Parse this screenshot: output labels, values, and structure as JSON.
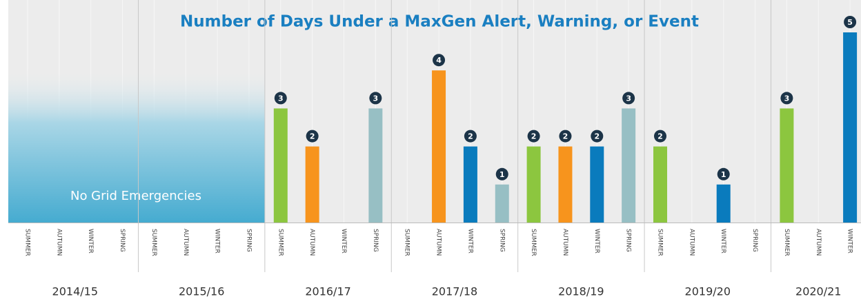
{
  "chart_data": {
    "type": "bar",
    "title": "Number of Days Under a MaxGen Alert, Warning, or Event",
    "annotation": "No Grid Emergencies",
    "ylim": [
      0,
      5
    ],
    "groups": [
      {
        "label": "2014/15",
        "categories": [
          "SUMMER",
          "AUTUMN",
          "WINTER",
          "SPRING"
        ],
        "values": [
          0,
          0,
          0,
          0
        ],
        "colors": [
          "#8cc63f",
          "#f7941d",
          "#0a7bbd",
          "#97bfc4"
        ]
      },
      {
        "label": "2015/16",
        "categories": [
          "SUMMER",
          "AUTUMN",
          "WINTER",
          "SPRING"
        ],
        "values": [
          0,
          0,
          0,
          0
        ],
        "colors": [
          "#8cc63f",
          "#f7941d",
          "#0a7bbd",
          "#97bfc4"
        ]
      },
      {
        "label": "2016/17",
        "categories": [
          "SUMMER",
          "AUTUMN",
          "WINTER",
          "SPRING"
        ],
        "values": [
          3,
          2,
          0,
          3
        ],
        "colors": [
          "#8cc63f",
          "#f7941d",
          "#0a7bbd",
          "#97bfc4"
        ]
      },
      {
        "label": "2017/18",
        "categories": [
          "SUMMER",
          "AUTUMN",
          "WINTER",
          "SPRING"
        ],
        "values": [
          0,
          4,
          2,
          1
        ],
        "colors": [
          "#8cc63f",
          "#f7941d",
          "#0a7bbd",
          "#97bfc4"
        ]
      },
      {
        "label": "2018/19",
        "categories": [
          "SUMMER",
          "AUTUMN",
          "WINTER",
          "SPRING"
        ],
        "values": [
          2,
          2,
          2,
          3
        ],
        "colors": [
          "#8cc63f",
          "#f7941d",
          "#0a7bbd",
          "#97bfc4"
        ]
      },
      {
        "label": "2019/20",
        "categories": [
          "SUMMER",
          "AUTUMN",
          "WINTER",
          "SPRING"
        ],
        "values": [
          2,
          0,
          1,
          0
        ],
        "colors": [
          "#8cc63f",
          "#f7941d",
          "#0a7bbd",
          "#97bfc4"
        ]
      },
      {
        "label": "2020/21",
        "categories": [
          "SUMMER",
          "AUTUMN",
          "WINTER"
        ],
        "values": [
          3,
          0,
          5
        ],
        "colors": [
          "#8cc63f",
          "#f7941d",
          "#0a7bbd"
        ]
      }
    ]
  }
}
